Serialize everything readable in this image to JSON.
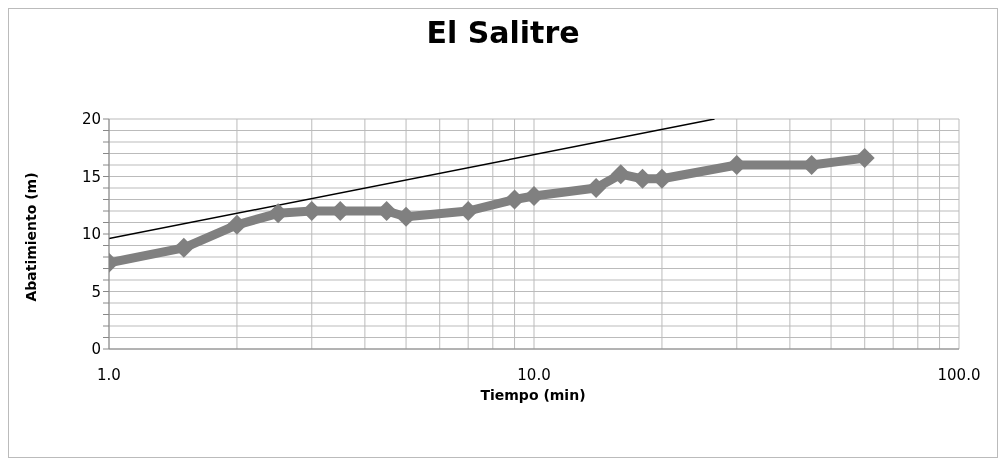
{
  "chart_data": {
    "type": "line",
    "title": "El Salitre",
    "xlabel": "Tiempo (min)",
    "ylabel": "Abatimiento (m)",
    "log": "x",
    "grid": true,
    "marker": "diamond",
    "legend": false,
    "xlim": [
      1,
      100
    ],
    "ylim": [
      0,
      20
    ],
    "xticks": [
      {
        "value": 1,
        "label": "1.0"
      },
      {
        "value": 2,
        "label": null
      },
      {
        "value": 3,
        "label": null
      },
      {
        "value": 4,
        "label": null
      },
      {
        "value": 5,
        "label": null
      },
      {
        "value": 6,
        "label": null
      },
      {
        "value": 7,
        "label": null
      },
      {
        "value": 8,
        "label": null
      },
      {
        "value": 9,
        "label": null
      },
      {
        "value": 10,
        "label": "10.0"
      },
      {
        "value": 20,
        "label": null
      },
      {
        "value": 30,
        "label": null
      },
      {
        "value": 40,
        "label": null
      },
      {
        "value": 50,
        "label": null
      },
      {
        "value": 60,
        "label": null
      },
      {
        "value": 70,
        "label": null
      },
      {
        "value": 80,
        "label": null
      },
      {
        "value": 90,
        "label": null
      },
      {
        "value": 100,
        "label": "100.0"
      }
    ],
    "yticks": [
      0,
      {
        "value": 1,
        "label": null
      },
      {
        "value": 2,
        "label": null
      },
      {
        "value": 3,
        "label": null
      },
      {
        "value": 4,
        "label": null
      },
      5,
      {
        "value": 6,
        "label": null
      },
      {
        "value": 7,
        "label": null
      },
      {
        "value": 8,
        "label": null
      },
      {
        "value": 9,
        "label": null
      },
      10,
      {
        "value": 11,
        "label": null
      },
      {
        "value": 12,
        "label": null
      },
      {
        "value": 13,
        "label": null
      },
      {
        "value": 14,
        "label": null
      },
      15,
      {
        "value": 16,
        "label": null
      },
      {
        "value": 17,
        "label": null
      },
      {
        "value": 18,
        "label": null
      },
      {
        "value": 19,
        "label": null
      },
      20
    ],
    "series": [
      {
        "color": "#808080",
        "x": [
          1,
          1.5,
          2,
          2.5,
          3,
          3.5,
          4.5,
          5,
          7,
          9,
          10,
          14,
          16,
          18,
          20,
          30,
          45,
          60
        ],
        "values": [
          7.5,
          8.8,
          10.8,
          11.8,
          12,
          12,
          12,
          11.5,
          12,
          13,
          13.3,
          14,
          15.2,
          14.8,
          14.8,
          16,
          16,
          16.6
        ]
      },
      {
        "type": "line",
        "color": "#000000",
        "marker": "none",
        "x": [
          1,
          26.6
        ],
        "values": [
          9.6,
          20
        ]
      }
    ]
  }
}
